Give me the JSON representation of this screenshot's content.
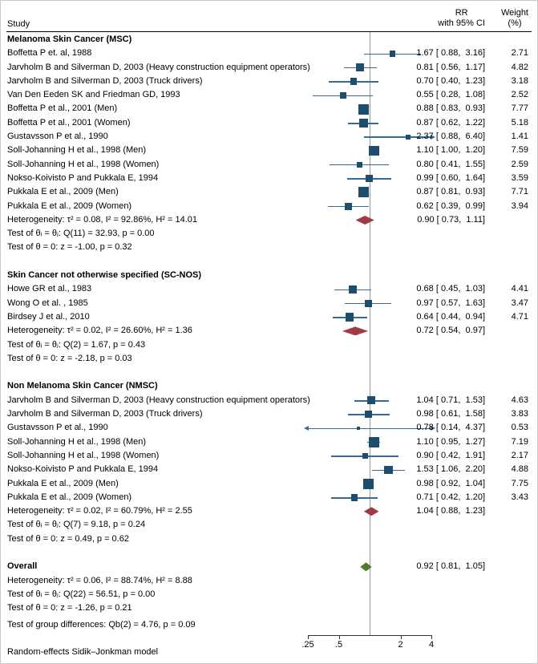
{
  "header": {
    "study_col": "Study",
    "rr_col_line1": "RR",
    "rr_col_line2": "with 95% CI",
    "weight_col_line1": "Weight",
    "weight_col_line2": "(%)"
  },
  "footer": {
    "note": "Random-effects Sidik–Jonkman model"
  },
  "colors": {
    "marker_square": "#1d4e6e",
    "ci_line": "#38699b",
    "subgroup_diamond": "#a03b44",
    "overall_diamond": "#4e7b2f",
    "reference_line": "#9a9a9a"
  },
  "chart_data": {
    "type": "forest",
    "effect_measure": "RR",
    "x_axis": {
      "scale": "log",
      "tick_labels": [
        ".25",
        ".5",
        "2",
        "4"
      ],
      "tick_values": [
        0.25,
        0.5,
        2,
        4
      ],
      "ref_value": 1,
      "clip_min": 0.25,
      "clip_max": 4
    },
    "rows": [
      {
        "t": "group",
        "label": "Melanoma Skin Cancer (MSC)"
      },
      {
        "t": "study",
        "label": "Boffetta P et. al, 1988",
        "rr": 1.67,
        "lo": 0.88,
        "hi": 3.16,
        "w": 2.71,
        "est": "1.67 [ 0.88,  3.16]",
        "wt": "2.71"
      },
      {
        "t": "study",
        "label": "Jarvholm B and Silverman D, 2003 (Heavy construction equipment operators)",
        "rr": 0.81,
        "lo": 0.56,
        "hi": 1.17,
        "w": 4.82,
        "est": "0.81 [ 0.56,  1.17]",
        "wt": "4.82"
      },
      {
        "t": "study",
        "label": "Jarvholm B and Silverman D, 2003 (Truck drivers)",
        "rr": 0.7,
        "lo": 0.4,
        "hi": 1.23,
        "w": 3.18,
        "est": "0.70 [ 0.40,  1.23]",
        "wt": "3.18"
      },
      {
        "t": "study",
        "label": "Van Den Eeden SK and Friedman GD, 1993",
        "rr": 0.55,
        "lo": 0.28,
        "hi": 1.08,
        "w": 2.52,
        "est": "0.55 [ 0.28,  1.08]",
        "wt": "2.52"
      },
      {
        "t": "study",
        "label": "Boffetta P et al., 2001 (Men)",
        "rr": 0.88,
        "lo": 0.83,
        "hi": 0.93,
        "w": 7.77,
        "est": "0.88 [ 0.83,  0.93]",
        "wt": "7.77"
      },
      {
        "t": "study",
        "label": "Boffetta P et al., 2001 (Women)",
        "rr": 0.87,
        "lo": 0.62,
        "hi": 1.22,
        "w": 5.18,
        "est": "0.87 [ 0.62,  1.22]",
        "wt": "5.18"
      },
      {
        "t": "study",
        "label": "Gustavsson P et al., 1990",
        "rr": 2.37,
        "lo": 0.88,
        "hi": 6.4,
        "w": 1.41,
        "est": "2.37 [ 0.88,  6.40]",
        "wt": "1.41"
      },
      {
        "t": "study",
        "label": "Soll-Johanning H et al., 1998 (Men)",
        "rr": 1.1,
        "lo": 1.0,
        "hi": 1.2,
        "w": 7.59,
        "est": "1.10 [ 1.00,  1.20]",
        "wt": "7.59"
      },
      {
        "t": "study",
        "label": "Soll-Johanning H et al., 1998 (Women)",
        "rr": 0.8,
        "lo": 0.41,
        "hi": 1.55,
        "w": 2.59,
        "est": "0.80 [ 0.41,  1.55]",
        "wt": "2.59"
      },
      {
        "t": "study",
        "label": "Nokso-Koivisto P and Pukkala E, 1994",
        "rr": 0.99,
        "lo": 0.6,
        "hi": 1.64,
        "w": 3.59,
        "est": "0.99 [ 0.60,  1.64]",
        "wt": "3.59"
      },
      {
        "t": "study",
        "label": "Pukkala E et al., 2009 (Men)",
        "rr": 0.87,
        "lo": 0.81,
        "hi": 0.93,
        "w": 7.71,
        "est": "0.87 [ 0.81,  0.93]",
        "wt": "7.71"
      },
      {
        "t": "study",
        "label": "Pukkala E et al., 2009 (Women)",
        "rr": 0.62,
        "lo": 0.39,
        "hi": 0.99,
        "w": 3.94,
        "est": "0.62 [ 0.39,  0.99]",
        "wt": "3.94"
      },
      {
        "t": "summary",
        "diamond": "subgroup",
        "label": "Heterogeneity: τ² = 0.08, I² = 92.86%, H² = 14.01",
        "rr": 0.9,
        "lo": 0.73,
        "hi": 1.11,
        "est": "0.90 [ 0.73,  1.11]"
      },
      {
        "t": "text",
        "label": "Test of θᵢ = θⱼ: Q(11) = 32.93, p = 0.00"
      },
      {
        "t": "text",
        "label": "Test of θ = 0: z = -1.00, p = 0.32"
      },
      {
        "t": "spacer"
      },
      {
        "t": "group",
        "label": "Skin Cancer not otherwise specified (SC-NOS)"
      },
      {
        "t": "study",
        "label": "Howe GR et al., 1983",
        "rr": 0.68,
        "lo": 0.45,
        "hi": 1.03,
        "w": 4.41,
        "est": "0.68 [ 0.45,  1.03]",
        "wt": "4.41"
      },
      {
        "t": "study",
        "label": "Wong O et al. , 1985",
        "rr": 0.97,
        "lo": 0.57,
        "hi": 1.63,
        "w": 3.47,
        "est": "0.97 [ 0.57,  1.63]",
        "wt": "3.47"
      },
      {
        "t": "study",
        "label": "Birdsey J et al., 2010",
        "rr": 0.64,
        "lo": 0.44,
        "hi": 0.94,
        "w": 4.71,
        "est": "0.64 [ 0.44,  0.94]",
        "wt": "4.71"
      },
      {
        "t": "summary",
        "diamond": "subgroup",
        "label": "Heterogeneity: τ² = 0.02, I² = 26.60%, H² = 1.36",
        "rr": 0.72,
        "lo": 0.54,
        "hi": 0.97,
        "est": "0.72 [ 0.54,  0.97]"
      },
      {
        "t": "text",
        "label": "Test of θᵢ = θⱼ: Q(2) = 1.67, p = 0.43"
      },
      {
        "t": "text",
        "label": "Test of θ = 0: z = -2.18, p = 0.03"
      },
      {
        "t": "spacer"
      },
      {
        "t": "group",
        "label": "Non Melanoma Skin Cancer (NMSC)"
      },
      {
        "t": "study",
        "label": "Jarvholm B and Silverman D, 2003 (Heavy construction equipment operators)",
        "rr": 1.04,
        "lo": 0.71,
        "hi": 1.53,
        "w": 4.63,
        "est": "1.04 [ 0.71,  1.53]",
        "wt": "4.63"
      },
      {
        "t": "study",
        "label": "Jarvholm B and Silverman D, 2003 (Truck drivers)",
        "rr": 0.98,
        "lo": 0.61,
        "hi": 1.58,
        "w": 3.83,
        "est": "0.98 [ 0.61,  1.58]",
        "wt": "3.83"
      },
      {
        "t": "study",
        "label": "Gustavsson P et al., 1990",
        "rr": 0.78,
        "lo": 0.14,
        "hi": 4.37,
        "w": 0.53,
        "est": "0.78 [ 0.14,  4.37]",
        "wt": "0.53"
      },
      {
        "t": "study",
        "label": "Soll-Johanning H et al., 1998 (Men)",
        "rr": 1.1,
        "lo": 0.95,
        "hi": 1.27,
        "w": 7.19,
        "est": "1.10 [ 0.95,  1.27]",
        "wt": "7.19"
      },
      {
        "t": "study",
        "label": "Soll-Johanning H et al., 1998 (Women)",
        "rr": 0.9,
        "lo": 0.42,
        "hi": 1.91,
        "w": 2.17,
        "est": "0.90 [ 0.42,  1.91]",
        "wt": "2.17"
      },
      {
        "t": "study",
        "label": "Nokso-Koivisto P and Pukkala E, 1994",
        "rr": 1.53,
        "lo": 1.06,
        "hi": 2.2,
        "w": 4.88,
        "est": "1.53 [ 1.06,  2.20]",
        "wt": "4.88"
      },
      {
        "t": "study",
        "label": "Pukkala E et al., 2009 (Men)",
        "rr": 0.98,
        "lo": 0.92,
        "hi": 1.04,
        "w": 7.75,
        "est": "0.98 [ 0.92,  1.04]",
        "wt": "7.75"
      },
      {
        "t": "study",
        "label": "Pukkala E et al., 2009 (Women)",
        "rr": 0.71,
        "lo": 0.42,
        "hi": 1.2,
        "w": 3.43,
        "est": "0.71 [ 0.42,  1.20]",
        "wt": "3.43"
      },
      {
        "t": "summary",
        "diamond": "subgroup",
        "label": "Heterogeneity: τ² = 0.02, I² = 60.79%, H² = 2.55",
        "rr": 1.04,
        "lo": 0.88,
        "hi": 1.23,
        "est": "1.04 [ 0.88,  1.23]"
      },
      {
        "t": "text",
        "label": "Test of θᵢ = θⱼ: Q(7) = 9.18, p = 0.24"
      },
      {
        "t": "text",
        "label": "Test of θ = 0: z = 0.49, p = 0.62"
      },
      {
        "t": "spacer"
      },
      {
        "t": "summary",
        "diamond": "overall",
        "bold": true,
        "label": "Overall",
        "rr": 0.92,
        "lo": 0.81,
        "hi": 1.05,
        "est": "0.92 [ 0.81,  1.05]"
      },
      {
        "t": "text",
        "label": "Heterogeneity: τ² = 0.06, I² = 88.74%, H² = 8.88"
      },
      {
        "t": "text",
        "label": "Test of θᵢ = θⱼ: Q(22) = 56.51, p = 0.00"
      },
      {
        "t": "text",
        "label": "Test of θ = 0: z = -1.26, p = 0.21"
      },
      {
        "t": "spacer",
        "h": 4
      },
      {
        "t": "text",
        "label": "Test of group differences: Qb(2) = 4.76, p = 0.09"
      }
    ]
  }
}
